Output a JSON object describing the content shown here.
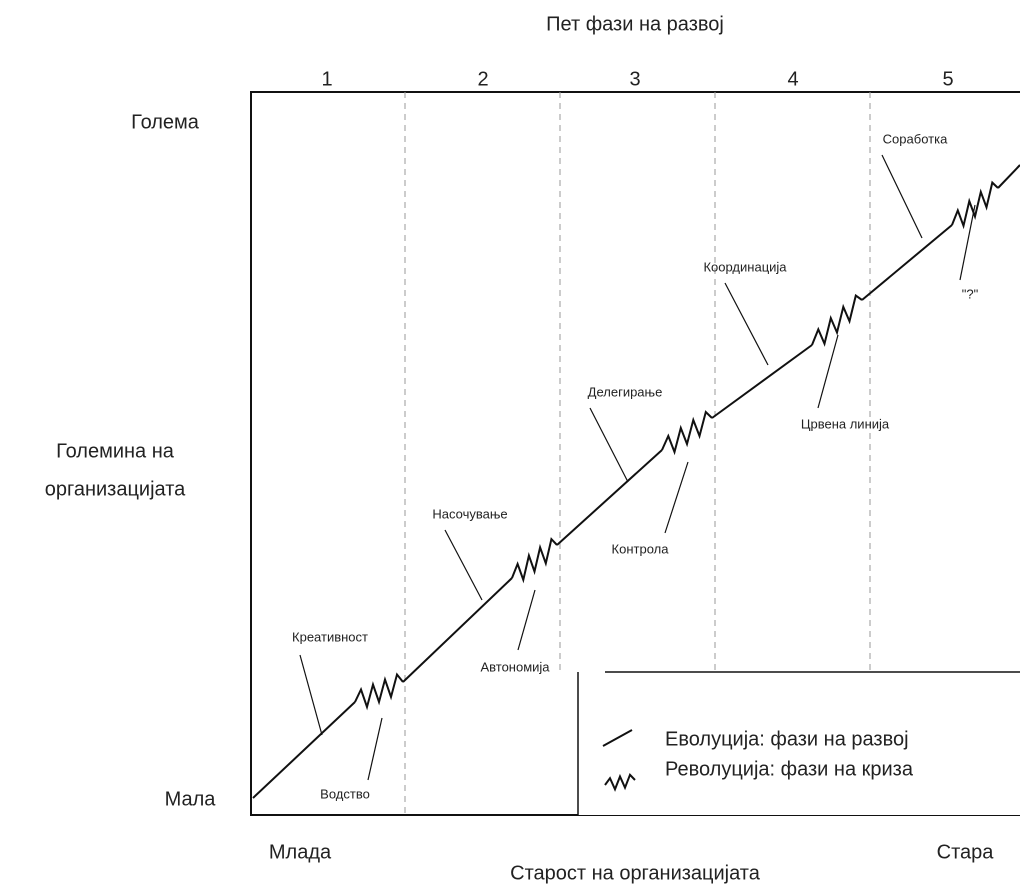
{
  "title": "Пет фази на развој",
  "phases": [
    "1",
    "2",
    "3",
    "4",
    "5"
  ],
  "y_axis": {
    "top": "Голема",
    "label": [
      "Големина на",
      "организацијата"
    ],
    "bottom": "Мала"
  },
  "x_axis": {
    "left": "Млада",
    "label": "Старост на организацијата",
    "right": "Стара"
  },
  "evolutions": [
    "Креативност",
    "Насочување",
    "Делегирање",
    "Координација",
    "Соработка"
  ],
  "revolutions": [
    "Водство",
    "Автономија",
    "Контрола",
    "Црвена линија",
    "\"?\""
  ],
  "legend": {
    "evolution": "Еволуција: фази на развој",
    "revolution": "Револуција: фази на криза"
  }
}
